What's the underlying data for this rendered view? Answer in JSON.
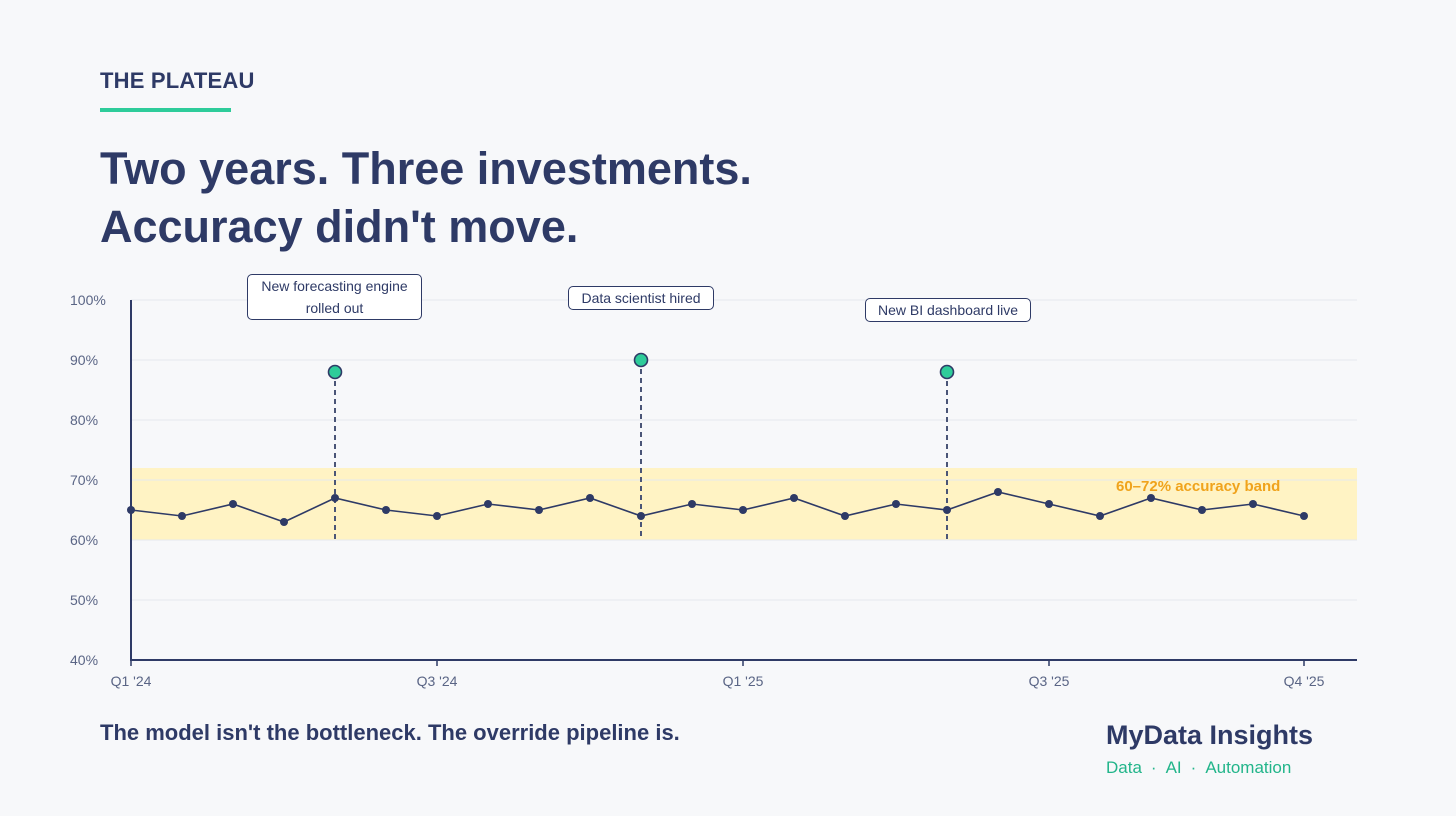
{
  "header": {
    "eyebrow": "THE PLATEAU",
    "headline_line1": "Two years. Three investments.",
    "headline_line2": "Accuracy didn't move."
  },
  "footer": {
    "subtitle": "The model isn't the bottleneck. The override pipeline is.",
    "brand": "MyData Insights",
    "tagline": [
      "Data",
      "AI",
      "Automation"
    ],
    "tagline_separator": "·"
  },
  "colors": {
    "navy": "#2e3a66",
    "accent_green": "#2ecc9a",
    "band_fill": "#fff3c4",
    "band_label": "#f0a31c",
    "grid": "#e6e8ee"
  },
  "chart_data": {
    "type": "line",
    "ylim": [
      40,
      100
    ],
    "y_ticks": [
      "40%",
      "50%",
      "60%",
      "70%",
      "80%",
      "90%",
      "100%"
    ],
    "x_ticks": [
      "Q1 '24",
      "Q3 '24",
      "Q1 '25",
      "Q3 '25",
      "Q4 '25"
    ],
    "x_tick_index": [
      0,
      6,
      12,
      18,
      23
    ],
    "series": [
      {
        "values": [
          65,
          64,
          66,
          63,
          67,
          65,
          64,
          66,
          65,
          67,
          64,
          66,
          65,
          67,
          64,
          66,
          65,
          68,
          66,
          64,
          67,
          65,
          66,
          64
        ]
      }
    ],
    "band": {
      "low": 60,
      "high": 72,
      "label": "60–72% accuracy band"
    },
    "annotations": [
      {
        "index": 4,
        "marker": 88,
        "lines": [
          "New forecasting engine",
          "rolled out"
        ]
      },
      {
        "index": 10,
        "marker": 90,
        "lines": [
          "Data scientist hired"
        ]
      },
      {
        "index": 16,
        "marker": 88,
        "lines": [
          "New BI dashboard live"
        ]
      }
    ]
  }
}
